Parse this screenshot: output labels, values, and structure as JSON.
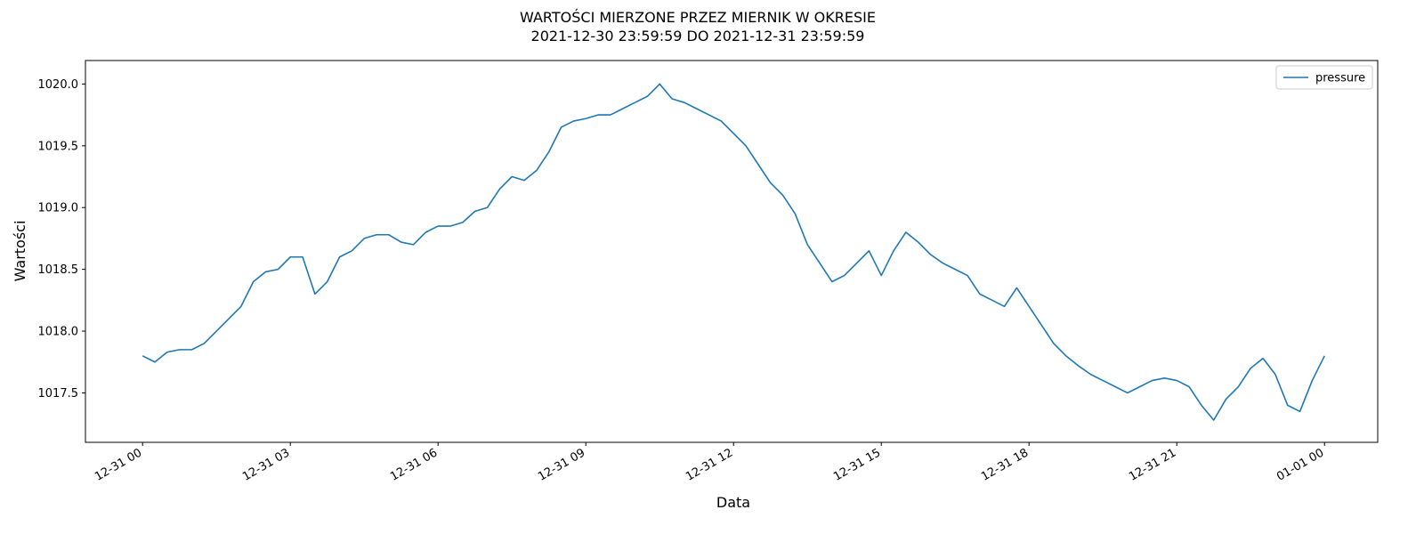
{
  "chart_data": {
    "type": "line",
    "title": "WARTOŚCI MIERZONE PRZEZ MIERNIK W OKRESIE",
    "subtitle": "2021-12-30 23:59:59 DO 2021-12-31 23:59:59",
    "xlabel": "Data",
    "ylabel": "Wartości",
    "x": [
      0,
      0.25,
      0.5,
      0.75,
      1,
      1.25,
      1.5,
      1.75,
      2,
      2.25,
      2.5,
      2.75,
      3,
      3.25,
      3.5,
      3.75,
      4,
      4.25,
      4.5,
      4.75,
      5,
      5.25,
      5.5,
      5.75,
      6,
      6.25,
      6.5,
      6.75,
      7,
      7.25,
      7.5,
      7.75,
      8,
      8.25,
      8.5,
      8.75,
      9,
      9.25,
      9.5,
      9.75,
      10,
      10.25,
      10.5,
      10.75,
      11,
      11.25,
      11.5,
      11.75,
      12,
      12.25,
      12.5,
      12.75,
      13,
      13.25,
      13.5,
      13.75,
      14,
      14.25,
      14.5,
      14.75,
      15,
      15.25,
      15.5,
      15.75,
      16,
      16.25,
      16.5,
      16.75,
      17,
      17.25,
      17.5,
      17.75,
      18,
      18.25,
      18.5,
      18.75,
      19,
      19.25,
      19.5,
      19.75,
      20,
      20.25,
      20.5,
      20.75,
      21,
      21.25,
      21.5,
      21.75,
      22,
      22.25,
      22.5,
      22.75,
      23,
      23.25,
      23.5,
      23.75,
      24
    ],
    "series": [
      {
        "name": "pressure",
        "color": "#1f77b4",
        "values": [
          1017.8,
          1017.75,
          1017.83,
          1017.85,
          1017.85,
          1017.9,
          1018.0,
          1018.1,
          1018.2,
          1018.4,
          1018.48,
          1018.5,
          1018.6,
          1018.6,
          1018.3,
          1018.4,
          1018.6,
          1018.65,
          1018.75,
          1018.78,
          1018.78,
          1018.72,
          1018.7,
          1018.8,
          1018.85,
          1018.85,
          1018.88,
          1018.97,
          1019.0,
          1019.15,
          1019.25,
          1019.22,
          1019.3,
          1019.45,
          1019.65,
          1019.7,
          1019.72,
          1019.75,
          1019.75,
          1019.8,
          1019.85,
          1019.9,
          1020.0,
          1019.88,
          1019.85,
          1019.8,
          1019.75,
          1019.7,
          1019.6,
          1019.5,
          1019.35,
          1019.2,
          1019.1,
          1018.95,
          1018.7,
          1018.55,
          1018.4,
          1018.45,
          1018.55,
          1018.65,
          1018.45,
          1018.65,
          1018.8,
          1018.72,
          1018.62,
          1018.55,
          1018.5,
          1018.45,
          1018.3,
          1018.25,
          1018.2,
          1018.35,
          1018.2,
          1018.05,
          1017.9,
          1017.8,
          1017.72,
          1017.65,
          1017.6,
          1017.55,
          1017.5,
          1017.55,
          1017.6,
          1017.62,
          1017.6,
          1017.55,
          1017.4,
          1017.28,
          1017.45,
          1017.55,
          1017.7,
          1017.78,
          1017.65,
          1017.4,
          1017.35,
          1017.6,
          1017.8
        ]
      }
    ],
    "xlim": [
      -1.16,
      25.08
    ],
    "xticks": [
      {
        "value": 0,
        "label": "12-31 00"
      },
      {
        "value": 3,
        "label": "12-31 03"
      },
      {
        "value": 6,
        "label": "12-31 06"
      },
      {
        "value": 9,
        "label": "12-31 09"
      },
      {
        "value": 12,
        "label": "12-31 12"
      },
      {
        "value": 15,
        "label": "12-31 15"
      },
      {
        "value": 18,
        "label": "12-31 18"
      },
      {
        "value": 21,
        "label": "12-31 21"
      },
      {
        "value": 24,
        "label": "01-01 00"
      }
    ],
    "ylim": [
      1017.1,
      1020.19
    ],
    "yticks": [
      1017.5,
      {
        "value": 1018,
        "label": "1018.0"
      },
      1018.5,
      {
        "value": 1019,
        "label": "1019.0"
      },
      1019.5,
      {
        "value": 1020,
        "label": "1020.0"
      }
    ],
    "legend": "upper right",
    "grid": false
  }
}
